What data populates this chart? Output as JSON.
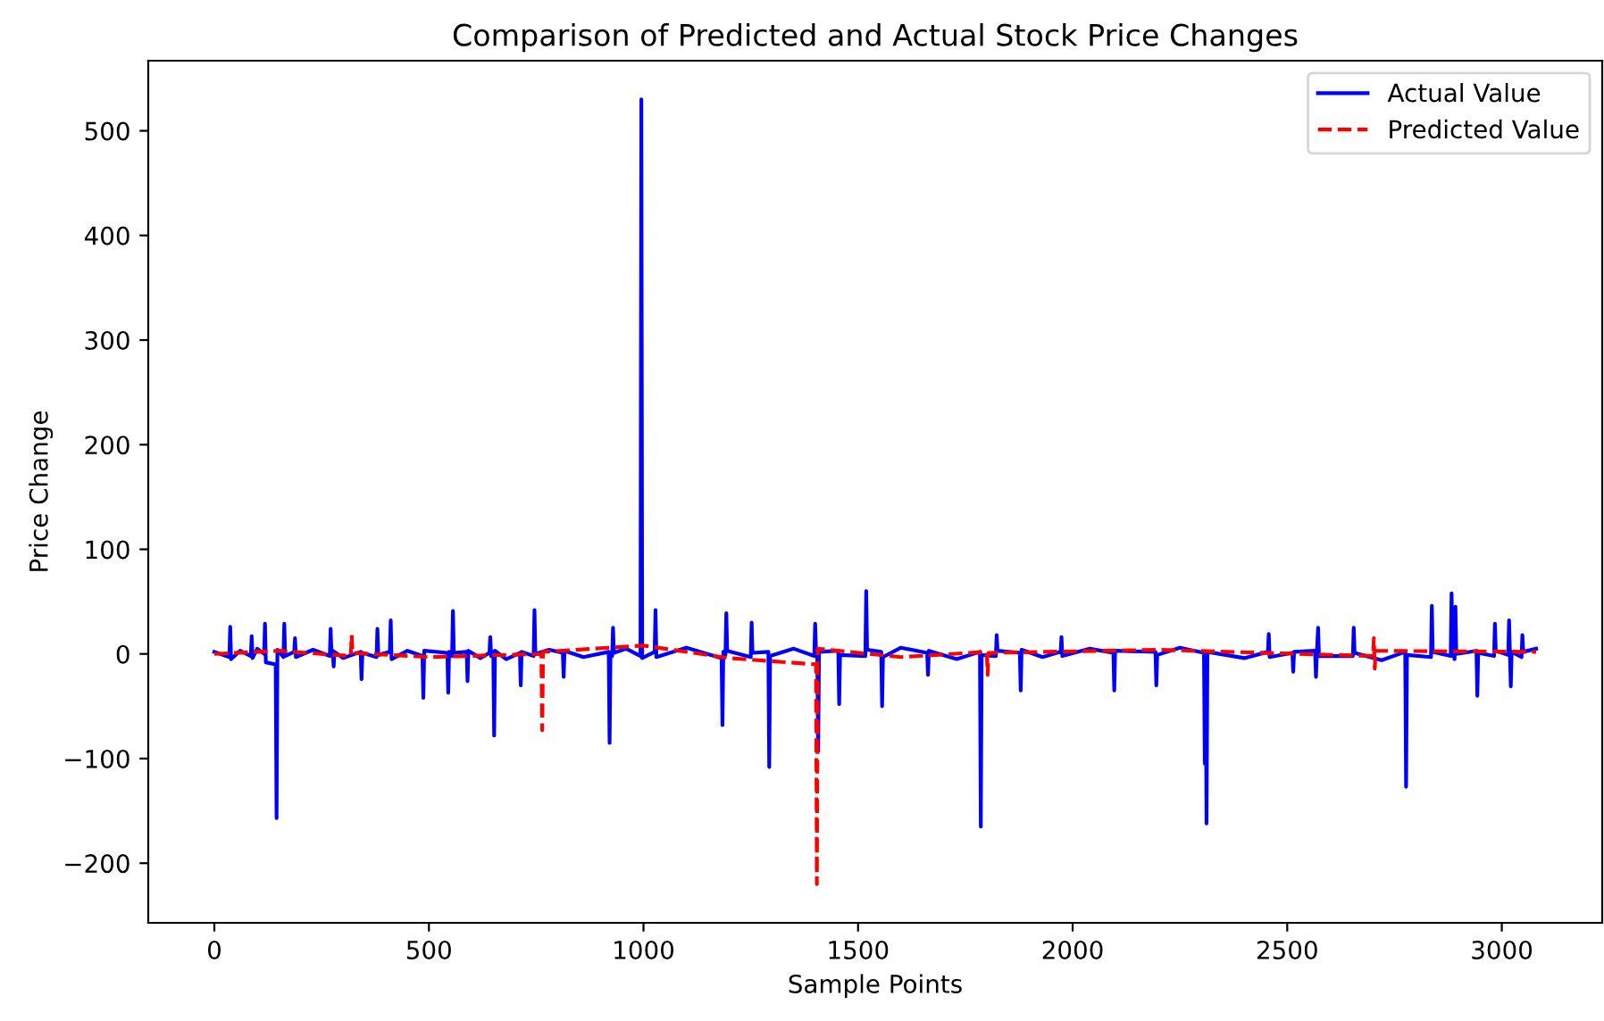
{
  "chart_data": {
    "type": "line",
    "title": "Comparison of Predicted and Actual Stock Price Changes",
    "xlabel": "Sample Points",
    "ylabel": "Price Change",
    "xlim": [
      -154,
      3234
    ],
    "ylim": [
      -257,
      567
    ],
    "xticks": [
      0,
      500,
      1000,
      1500,
      2000,
      2500,
      3000
    ],
    "yticks": [
      -200,
      -100,
      0,
      100,
      200,
      300,
      400,
      500
    ],
    "grid": false,
    "legend": "top right",
    "marker": "none",
    "series": [
      {
        "name": "Actual Value",
        "color": "#0000ff",
        "line_style": "solid",
        "x": [
          0,
          35,
          37,
          39,
          60,
          85,
          87,
          89,
          100,
          116,
          118,
          120,
          143,
          145,
          147,
          161,
          163,
          165,
          186,
          188,
          190,
          230,
          269,
          271,
          273,
          276,
          278,
          280,
          300,
          341,
          343,
          345,
          378,
          380,
          382,
          409,
          411,
          413,
          450,
          485,
          487,
          489,
          543,
          545,
          547,
          554,
          556,
          558,
          588,
          590,
          592,
          620,
          641,
          643,
          645,
          650,
          652,
          654,
          680,
          712,
          714,
          716,
          744,
          746,
          748,
          780,
          812,
          814,
          816,
          860,
          919,
          921,
          923,
          927,
          929,
          931,
          960,
          993,
          995,
          997,
          1026,
          1028,
          1030,
          1100,
          1182,
          1184,
          1186,
          1191,
          1193,
          1195,
          1250,
          1252,
          1254,
          1291,
          1293,
          1295,
          1350,
          1398,
          1400,
          1402,
          1405,
          1407,
          1409,
          1454,
          1456,
          1458,
          1517,
          1519,
          1521,
          1554,
          1556,
          1558,
          1600,
          1661,
          1663,
          1665,
          1730,
          1784,
          1786,
          1788,
          1821,
          1823,
          1825,
          1877,
          1879,
          1881,
          1930,
          1972,
          1974,
          1976,
          2040,
          2095,
          2097,
          2099,
          2193,
          2195,
          2197,
          2250,
          2306,
          2308,
          2310,
          2312,
          2314,
          2400,
          2455,
          2457,
          2459,
          2512,
          2514,
          2516,
          2565,
          2567,
          2569,
          2572,
          2574,
          2653,
          2655,
          2657,
          2720,
          2775,
          2777,
          2779,
          2835,
          2837,
          2839,
          2881,
          2883,
          2885,
          2890,
          2892,
          2894,
          2941,
          2943,
          2945,
          2982,
          2984,
          2986,
          3015,
          3017,
          3021,
          3023,
          3046,
          3048,
          3050,
          3080
        ],
        "values": [
          2,
          -3,
          26,
          -5,
          3,
          -2,
          17,
          -4,
          5,
          0,
          29,
          -8,
          -10,
          -157,
          4,
          -3,
          29,
          -2,
          2,
          15,
          -3,
          4,
          -2,
          24,
          0,
          3,
          -12,
          2,
          -4,
          2,
          -24,
          1,
          -3,
          24,
          -1,
          2,
          32,
          -5,
          3,
          -2,
          -42,
          3,
          1,
          -37,
          2,
          -2,
          41,
          1,
          2,
          -26,
          3,
          -4,
          1,
          16,
          -2,
          2,
          -78,
          3,
          -5,
          1,
          -30,
          2,
          -2,
          42,
          0,
          4,
          1,
          -22,
          3,
          -3,
          2,
          -85,
          0,
          -2,
          25,
          1,
          5,
          -2,
          530,
          -4,
          2,
          42,
          -3,
          6,
          -4,
          -68,
          2,
          -1,
          39,
          3,
          -3,
          30,
          1,
          2,
          -108,
          -2,
          5,
          -2,
          29,
          3,
          -4,
          -93,
          2,
          3,
          -48,
          -1,
          -2,
          60,
          4,
          2,
          -50,
          -3,
          6,
          1,
          -20,
          3,
          -5,
          2,
          -165,
          -1,
          -2,
          18,
          3,
          1,
          -35,
          4,
          -3,
          2,
          16,
          -2,
          5,
          1,
          -35,
          3,
          2,
          -30,
          -1,
          6,
          1,
          -105,
          -3,
          -162,
          2,
          -4,
          2,
          19,
          -3,
          1,
          -17,
          2,
          3,
          -22,
          0,
          25,
          -2,
          -2,
          25,
          1,
          -6,
          2,
          -127,
          -1,
          -3,
          46,
          2,
          -2,
          58,
          4,
          -5,
          45,
          0,
          3,
          -40,
          1,
          -2,
          29,
          3,
          -1,
          32,
          -31,
          2,
          -3,
          18,
          2,
          5
        ]
      },
      {
        "name": "Predicted Value",
        "color": "#ff0000",
        "line_style": "dashed",
        "x": [
          0,
          150,
          318,
          320,
          322,
          500,
          762,
          764,
          766,
          1000,
          1200,
          1402,
          1404,
          1406,
          1600,
          1800,
          1802,
          1804,
          2200,
          2700,
          2702,
          2704,
          2706,
          3080
        ],
        "values": [
          0,
          3,
          -2,
          18,
          1,
          -3,
          0,
          -73,
          2,
          8,
          -4,
          -10,
          -220,
          5,
          -3,
          2,
          -20,
          1,
          4,
          -2,
          15,
          -14,
          3,
          2
        ]
      }
    ]
  }
}
